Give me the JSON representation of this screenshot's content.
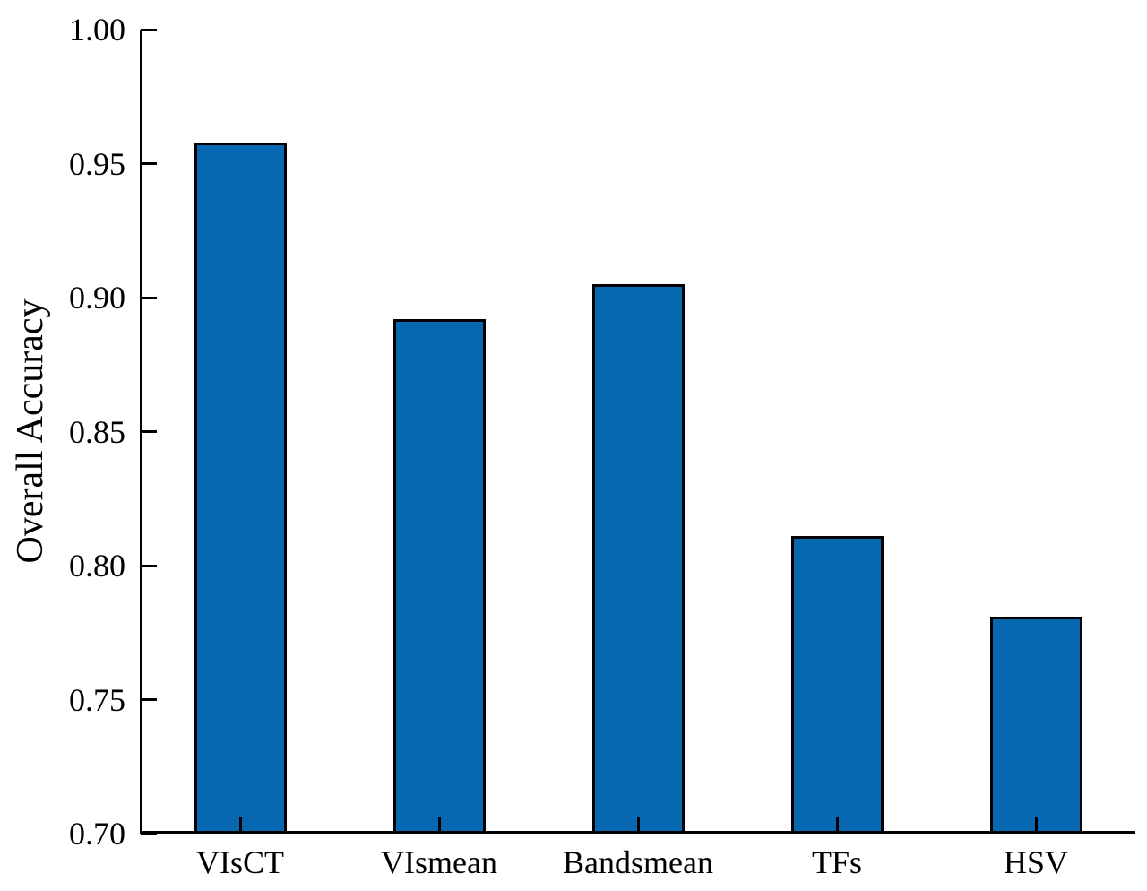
{
  "figure": {
    "background": "#ffffff"
  },
  "chart_data": {
    "type": "bar",
    "categories": [
      "VIsCT",
      "VIsmean",
      "Bandsmean",
      "TFs",
      "HSV"
    ],
    "values": [
      0.958,
      0.892,
      0.905,
      0.811,
      0.781
    ],
    "title": "",
    "xlabel": "",
    "ylabel": "Overall Accuracy",
    "ylim": [
      0.7,
      1.0
    ],
    "yticks": [
      0.7,
      0.75,
      0.8,
      0.85,
      0.9,
      0.95,
      1.0
    ],
    "ytick_labels": [
      "0.70",
      "0.75",
      "0.80",
      "0.85",
      "0.90",
      "0.95",
      "1.00"
    ],
    "grid": false,
    "legend": false,
    "tick_direction": "in",
    "bar_color": "#0867b1",
    "bar_edge_color": "#000000",
    "axis_color": "#000000"
  }
}
